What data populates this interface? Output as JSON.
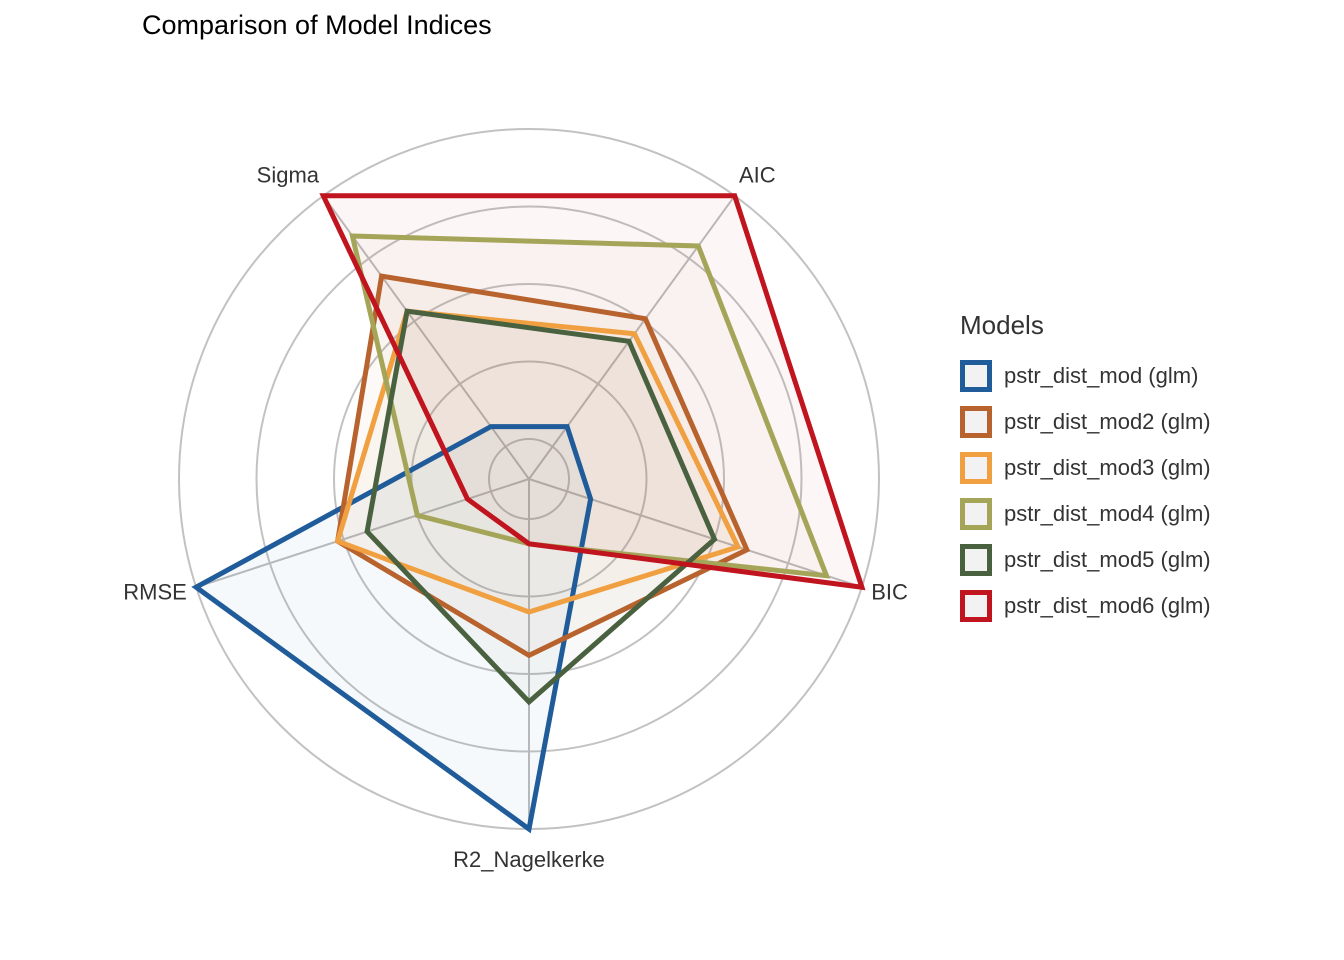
{
  "chart_data": {
    "type": "radar",
    "title": "Comparison of Model Indices",
    "axes": [
      "AIC",
      "BIC",
      "R2_Nagelkerke",
      "RMSE",
      "Sigma"
    ],
    "rings": 4,
    "legend_title": "Models",
    "legend_position": "right",
    "grid": true,
    "series": [
      {
        "name": "pstr_dist_mod (glm)",
        "color": "#1f5c99",
        "values": [
          0.08,
          0.08,
          1.0,
          1.0,
          0.08
        ]
      },
      {
        "name": "pstr_dist_mod2 (glm)",
        "color": "#b8622e",
        "values": [
          0.51,
          0.61,
          0.44,
          0.52,
          0.68
        ]
      },
      {
        "name": "pstr_dist_mod3 (glm)",
        "color": "#f0a040",
        "values": [
          0.45,
          0.58,
          0.3,
          0.52,
          0.54
        ]
      },
      {
        "name": "pstr_dist_mod4 (glm)",
        "color": "#a5a55a",
        "values": [
          0.8,
          0.88,
          0.08,
          0.25,
          0.84
        ]
      },
      {
        "name": "pstr_dist_mod5 (glm)",
        "color": "#4a6140",
        "values": [
          0.42,
          0.5,
          0.59,
          0.42,
          0.54
        ]
      },
      {
        "name": "pstr_dist_mod6 (glm)",
        "color": "#c0141e",
        "values": [
          1.0,
          1.0,
          0.08,
          0.08,
          1.0
        ]
      }
    ]
  }
}
